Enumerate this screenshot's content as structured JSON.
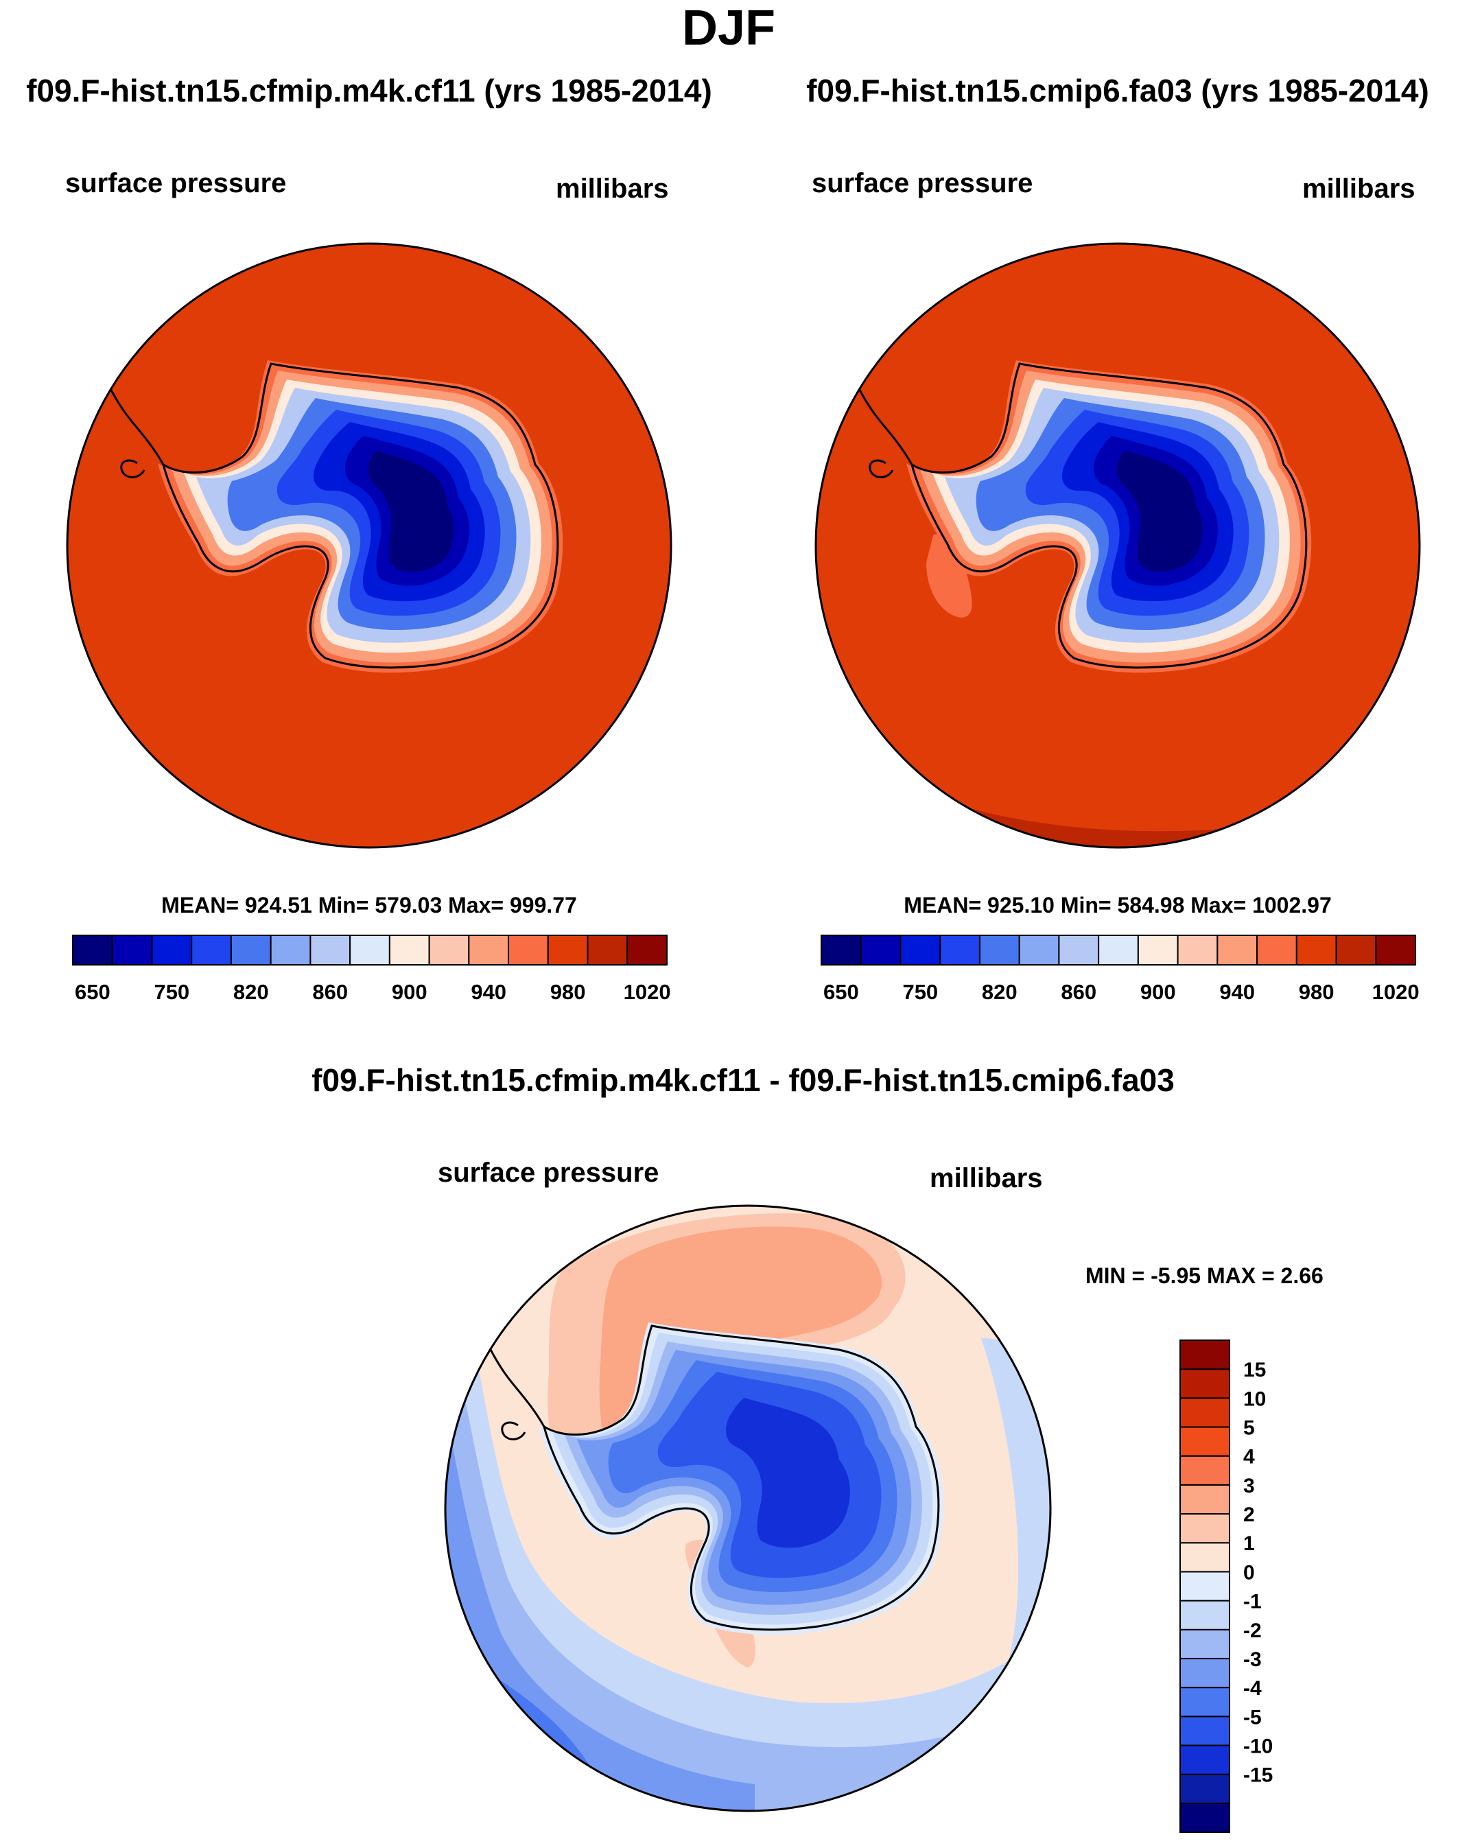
{
  "season": "DJF",
  "colors": {
    "full": [
      "#00007a",
      "#0000b2",
      "#0018d8",
      "#1f44f0",
      "#4776ee",
      "#87a8f2",
      "#b6c9f5",
      "#dce9fb",
      "#fdebdd",
      "#fcc7b0",
      "#fb9e7a",
      "#f86d44",
      "#e03c08",
      "#bd2603",
      "#8c0500"
    ],
    "diff": [
      "#00007a",
      "#0a1ea8",
      "#1330d8",
      "#2c55ec",
      "#4a78f0",
      "#7499f2",
      "#9fb9f5",
      "#c7d9f9",
      "#e0ecfb",
      "#fde5d6",
      "#fcc5ae",
      "#fba684",
      "#f9744c",
      "#f04d1a",
      "#d8360a",
      "#b81c02",
      "#8c0500"
    ]
  },
  "panels": [
    {
      "case": "f09.F-hist.tn15.cfmip.m4k.cf11 (yrs 1985-2014)",
      "variable": "surface pressure",
      "units": "millibars",
      "stats": "MEAN= 924.51  Min= 579.03  Max= 999.77",
      "map": {
        "field_min": 579.03,
        "field_max": 999.77,
        "ocean_value": 985
      }
    },
    {
      "case": "f09.F-hist.tn15.cmip6.fa03 (yrs 1985-2014)",
      "variable": "surface pressure",
      "units": "millibars",
      "stats": "MEAN= 925.10  Min= 584.98  Max= 1002.97",
      "map": {
        "field_min": 584.98,
        "field_max": 1002.97,
        "ocean_value": 985
      }
    }
  ],
  "colorbar_full": {
    "levels": [
      650,
      700,
      750,
      800,
      820,
      840,
      860,
      880,
      900,
      920,
      940,
      960,
      980,
      1000,
      1020
    ],
    "tick_labels": [
      "650",
      "750",
      "820",
      "860",
      "900",
      "940",
      "980",
      "1020"
    ]
  },
  "difference": {
    "title": "f09.F-hist.tn15.cfmip.m4k.cf11 - f09.F-hist.tn15.cmip6.fa03",
    "variable": "surface pressure",
    "units": "millibars",
    "stats": "MIN =  -5.95 MAX =   2.66",
    "map": {
      "field_min": -5.95,
      "field_max": 2.66
    },
    "colorbar": {
      "labels": [
        "15",
        "10",
        "5",
        "4",
        "3",
        "2",
        "1",
        "0",
        "-1",
        "-2",
        "-3",
        "-4",
        "-5",
        "-10",
        "-15"
      ]
    }
  }
}
